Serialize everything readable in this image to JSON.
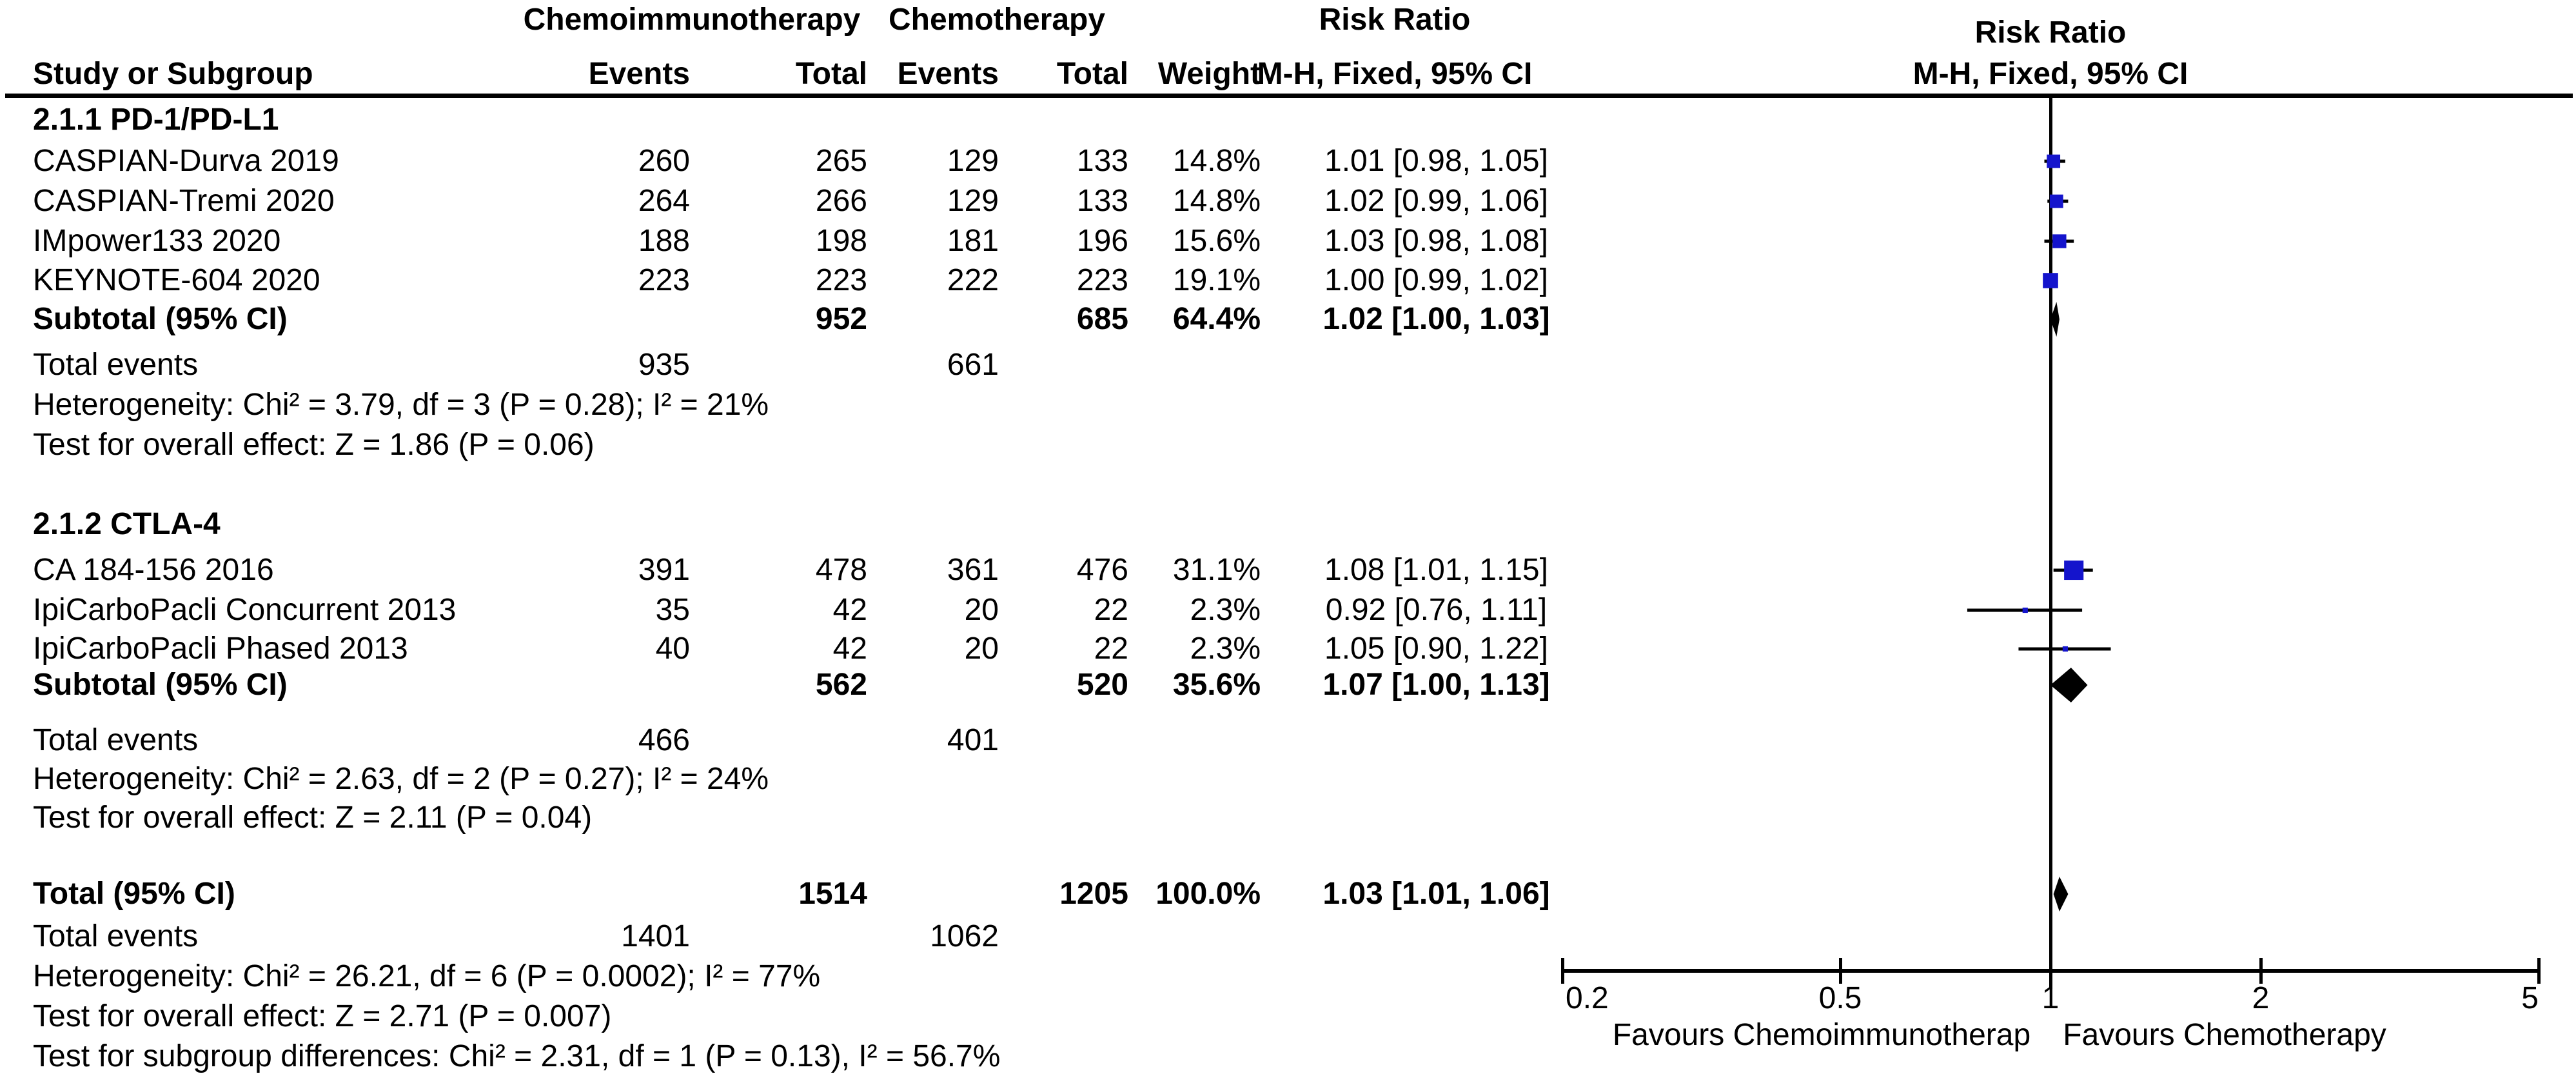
{
  "header": {
    "col_study": "Study or Subgroup",
    "group_treatment": "Chemoimmunotherapy",
    "group_control": "Chemotherapy",
    "col_events": "Events",
    "col_total": "Total",
    "col_weight": "Weight",
    "effect_line1": "Risk Ratio",
    "effect_line2": "M-H, Fixed, 95% CI",
    "plot_line1": "Risk Ratio",
    "plot_line2": "M-H, Fixed, 95% CI"
  },
  "rows": [
    {
      "study": "2.1.1 PD-1/PD-L1",
      "bold": true
    },
    {
      "study": "CASPIAN-Durva 2019",
      "e1": "260",
      "t1": "265",
      "e2": "129",
      "t2": "133",
      "w": "14.8%",
      "ci": "1.01 [0.98, 1.05]"
    },
    {
      "study": "CASPIAN-Tremi 2020",
      "e1": "264",
      "t1": "266",
      "e2": "129",
      "t2": "133",
      "w": "14.8%",
      "ci": "1.02 [0.99, 1.06]"
    },
    {
      "study": "IMpower133 2020",
      "e1": "188",
      "t1": "198",
      "e2": "181",
      "t2": "196",
      "w": "15.6%",
      "ci": "1.03 [0.98, 1.08]"
    },
    {
      "study": "KEYNOTE-604 2020",
      "e1": "223",
      "t1": "223",
      "e2": "222",
      "t2": "223",
      "w": "19.1%",
      "ci": "1.00 [0.99, 1.02]"
    },
    {
      "study": "Subtotal (95% CI)",
      "t1": "952",
      "t2": "685",
      "w": "64.4%",
      "ci": "1.02 [1.00, 1.03]",
      "bold": true
    },
    {
      "study": "Total events",
      "e1": "935",
      "e2": "661"
    },
    {
      "study": "Heterogeneity: Chi² = 3.79, df = 3 (P = 0.28); I² = 21%"
    },
    {
      "study": "Test for overall effect: Z = 1.86 (P = 0.06)"
    },
    {
      "study": "2.1.2 CTLA-4",
      "bold": true
    },
    {
      "study": "CA 184-156 2016",
      "e1": "391",
      "t1": "478",
      "e2": "361",
      "t2": "476",
      "w": "31.1%",
      "ci": "1.08 [1.01, 1.15]"
    },
    {
      "study": "IpiCarboPacli Concurrent 2013",
      "e1": "35",
      "t1": "42",
      "e2": "20",
      "t2": "22",
      "w": "2.3%",
      "ci": "0.92 [0.76, 1.11]"
    },
    {
      "study": "IpiCarboPacli Phased 2013",
      "e1": "40",
      "t1": "42",
      "e2": "20",
      "t2": "22",
      "w": "2.3%",
      "ci": "1.05 [0.90, 1.22]"
    },
    {
      "study": "Subtotal (95% CI)",
      "t1": "562",
      "t2": "520",
      "w": "35.6%",
      "ci": "1.07 [1.00, 1.13]",
      "bold": true
    },
    {
      "study": "Total events",
      "e1": "466",
      "e2": "401"
    },
    {
      "study": "Heterogeneity: Chi² = 2.63, df = 2 (P = 0.27); I² = 24%"
    },
    {
      "study": "Test for overall effect: Z = 2.11 (P = 0.04)"
    },
    {
      "study": "Total (95% CI)",
      "t1": "1514",
      "t2": "1205",
      "w": "100.0%",
      "ci": "1.03 [1.01, 1.06]",
      "bold": true
    },
    {
      "study": "Total events",
      "e1": "1401",
      "e2": "1062"
    },
    {
      "study": "Heterogeneity: Chi² = 26.21, df = 6 (P = 0.0002); I² = 77%"
    },
    {
      "study": "Test for overall effect: Z = 2.71 (P = 0.007)"
    },
    {
      "study": "Test for subgroup differences: Chi² = 2.31, df = 1 (P = 0.13), I² = 56.7%"
    }
  ],
  "chart_data": {
    "type": "forest",
    "effect_measure": "Risk Ratio",
    "model": "M-H, Fixed, 95% CI",
    "marker_color": "#1414CC",
    "pooled_color": "#000000",
    "x_axis": {
      "scale": "log",
      "min": 0.2,
      "max": 5,
      "ticks": [
        0.2,
        0.5,
        1,
        2,
        5
      ],
      "tick_labels": [
        "0.2",
        "0.5",
        "1",
        "2",
        "5"
      ],
      "favours_left": "Favours Chemoimmunotherap",
      "favours_right": "Favours Chemotherapy"
    },
    "subgroups": [
      {
        "name": "2.1.1 PD-1/PD-L1",
        "studies": [
          {
            "name": "CASPIAN-Durva 2019",
            "events_tx": 260,
            "total_tx": 265,
            "events_ctrl": 129,
            "total_ctrl": 133,
            "weight_pct": 14.8,
            "rr": 1.01,
            "ci": [
              0.98,
              1.05
            ]
          },
          {
            "name": "CASPIAN-Tremi 2020",
            "events_tx": 264,
            "total_tx": 266,
            "events_ctrl": 129,
            "total_ctrl": 133,
            "weight_pct": 14.8,
            "rr": 1.02,
            "ci": [
              0.99,
              1.06
            ]
          },
          {
            "name": "IMpower133 2020",
            "events_tx": 188,
            "total_tx": 198,
            "events_ctrl": 181,
            "total_ctrl": 196,
            "weight_pct": 15.6,
            "rr": 1.03,
            "ci": [
              0.98,
              1.08
            ]
          },
          {
            "name": "KEYNOTE-604 2020",
            "events_tx": 223,
            "total_tx": 223,
            "events_ctrl": 222,
            "total_ctrl": 223,
            "weight_pct": 19.1,
            "rr": 1.0,
            "ci": [
              0.99,
              1.02
            ]
          }
        ],
        "subtotal": {
          "total_tx": 952,
          "total_ctrl": 685,
          "weight_pct": 64.4,
          "rr": 1.02,
          "ci": [
            1.0,
            1.03
          ]
        },
        "total_events_tx": 935,
        "total_events_ctrl": 661,
        "heterogeneity": "Chi² = 3.79, df = 3 (P = 0.28); I² = 21%",
        "overall_effect": "Z = 1.86 (P = 0.06)"
      },
      {
        "name": "2.1.2 CTLA-4",
        "studies": [
          {
            "name": "CA 184-156 2016",
            "events_tx": 391,
            "total_tx": 478,
            "events_ctrl": 361,
            "total_ctrl": 476,
            "weight_pct": 31.1,
            "rr": 1.08,
            "ci": [
              1.01,
              1.15
            ]
          },
          {
            "name": "IpiCarboPacli Concurrent 2013",
            "events_tx": 35,
            "total_tx": 42,
            "events_ctrl": 20,
            "total_ctrl": 22,
            "weight_pct": 2.3,
            "rr": 0.92,
            "ci": [
              0.76,
              1.11
            ]
          },
          {
            "name": "IpiCarboPacli Phased 2013",
            "events_tx": 40,
            "total_tx": 42,
            "events_ctrl": 20,
            "total_ctrl": 22,
            "weight_pct": 2.3,
            "rr": 1.05,
            "ci": [
              0.9,
              1.22
            ]
          }
        ],
        "subtotal": {
          "total_tx": 562,
          "total_ctrl": 520,
          "weight_pct": 35.6,
          "rr": 1.07,
          "ci": [
            1.0,
            1.13
          ]
        },
        "total_events_tx": 466,
        "total_events_ctrl": 401,
        "heterogeneity": "Chi² = 2.63, df = 2 (P = 0.27); I² = 24%",
        "overall_effect": "Z = 2.11 (P = 0.04)"
      }
    ],
    "total": {
      "total_tx": 1514,
      "total_ctrl": 1205,
      "weight_pct": 100.0,
      "rr": 1.03,
      "ci": [
        1.01,
        1.06
      ],
      "total_events_tx": 1401,
      "total_events_ctrl": 1062,
      "heterogeneity": "Chi² = 26.21, df = 6 (P = 0.0002); I² = 77%",
      "overall_effect": "Z = 2.71 (P = 0.007)",
      "subgroup_differences": "Chi² = 2.31, df = 1 (P = 0.13), I² = 56.7%"
    }
  }
}
